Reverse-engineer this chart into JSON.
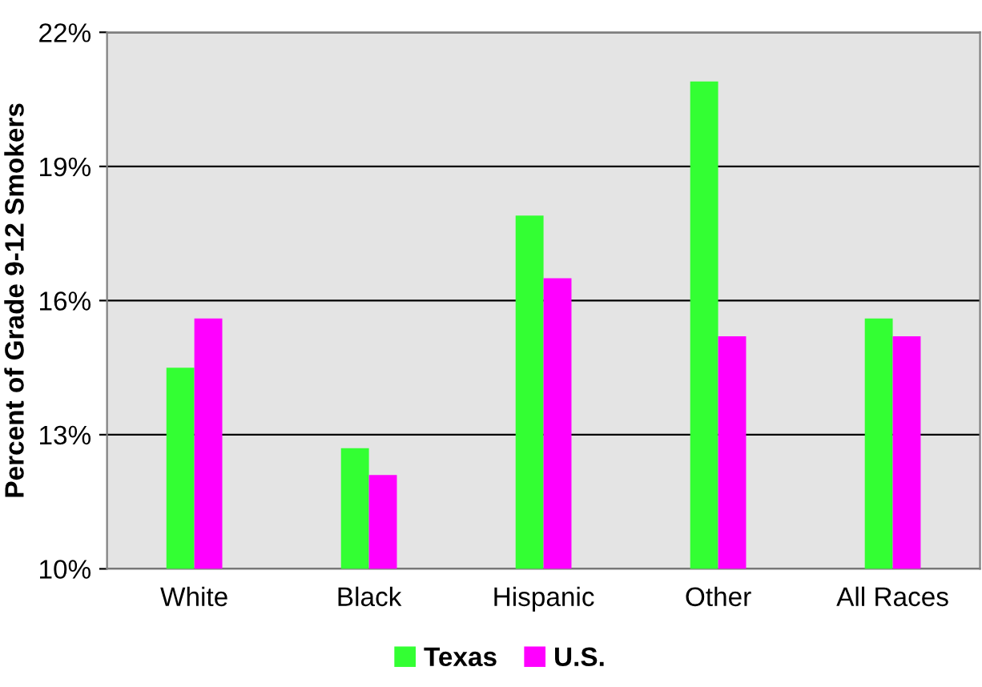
{
  "chart_data": {
    "type": "bar",
    "ylabel": "Percent of Grade 9-12 Smokers",
    "categories": [
      "White",
      "Black",
      "Hispanic",
      "Other",
      "All Races"
    ],
    "series": [
      {
        "name": "Texas",
        "color": "#33ff33",
        "values": [
          14.5,
          12.7,
          17.9,
          20.9,
          15.6
        ]
      },
      {
        "name": "U.S.",
        "color": "#ff00ff",
        "values": [
          15.6,
          12.1,
          16.5,
          15.2,
          15.2
        ]
      }
    ],
    "ylim": [
      10,
      22
    ],
    "yticks": [
      {
        "value": 10,
        "label": "10%"
      },
      {
        "value": 13,
        "label": "13%"
      },
      {
        "value": 16,
        "label": "16%"
      },
      {
        "value": 19,
        "label": "19%"
      },
      {
        "value": 22,
        "label": "22%"
      }
    ],
    "grid": "y",
    "legend": "bottom"
  }
}
